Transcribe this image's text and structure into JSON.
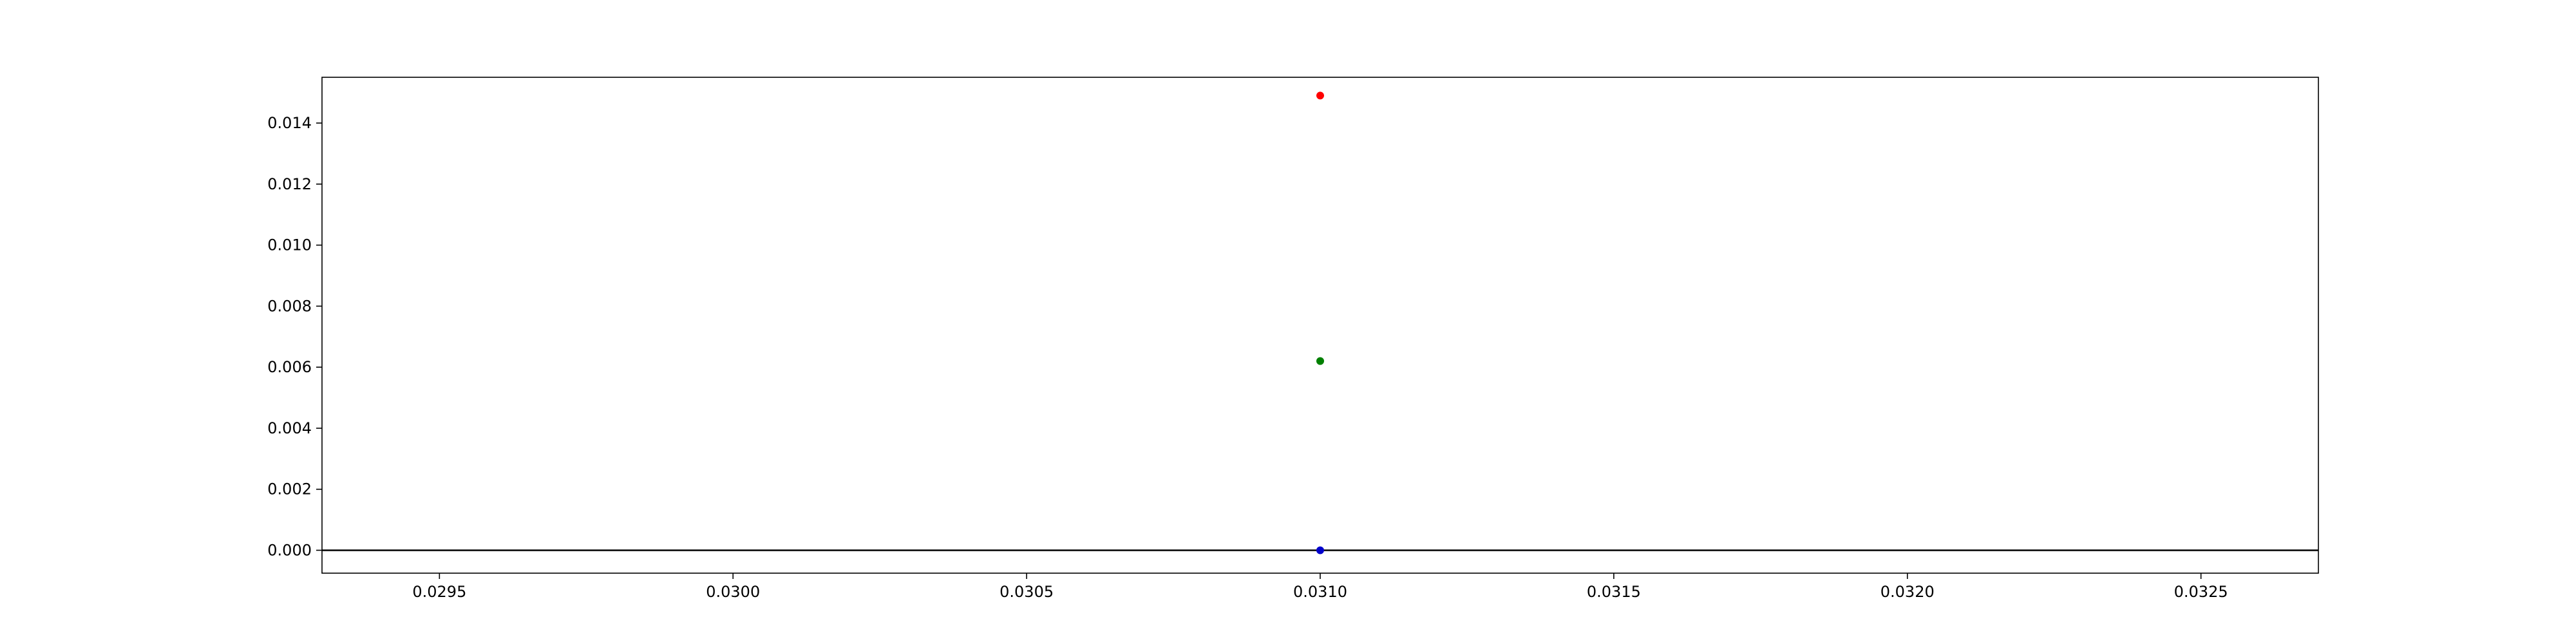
{
  "chart_data": {
    "type": "scatter",
    "title": "",
    "xlabel": "",
    "ylabel": "",
    "xlim": [
      0.0293,
      0.0327
    ],
    "ylim": [
      -0.00075,
      0.0155
    ],
    "x_ticks": [
      0.0295,
      0.03,
      0.0305,
      0.031,
      0.0315,
      0.032,
      0.0325
    ],
    "x_tick_labels": [
      "0.0295",
      "0.0300",
      "0.0305",
      "0.0310",
      "0.0315",
      "0.0320",
      "0.0325"
    ],
    "y_ticks": [
      0.0,
      0.002,
      0.004,
      0.006,
      0.008,
      0.01,
      0.012,
      0.014
    ],
    "y_tick_labels": [
      "0.000",
      "0.002",
      "0.004",
      "0.006",
      "0.008",
      "0.010",
      "0.012",
      "0.014"
    ],
    "grid": false,
    "legend": "none",
    "horizontal_reference_line": {
      "y": 0,
      "color": "#000000"
    },
    "points": [
      {
        "x": 0.031,
        "y": 0.0149,
        "color": "#ff0000"
      },
      {
        "x": 0.031,
        "y": 0.0062,
        "color": "#008000"
      },
      {
        "x": 0.031,
        "y": 0.0,
        "color": "#0000cc"
      }
    ]
  }
}
